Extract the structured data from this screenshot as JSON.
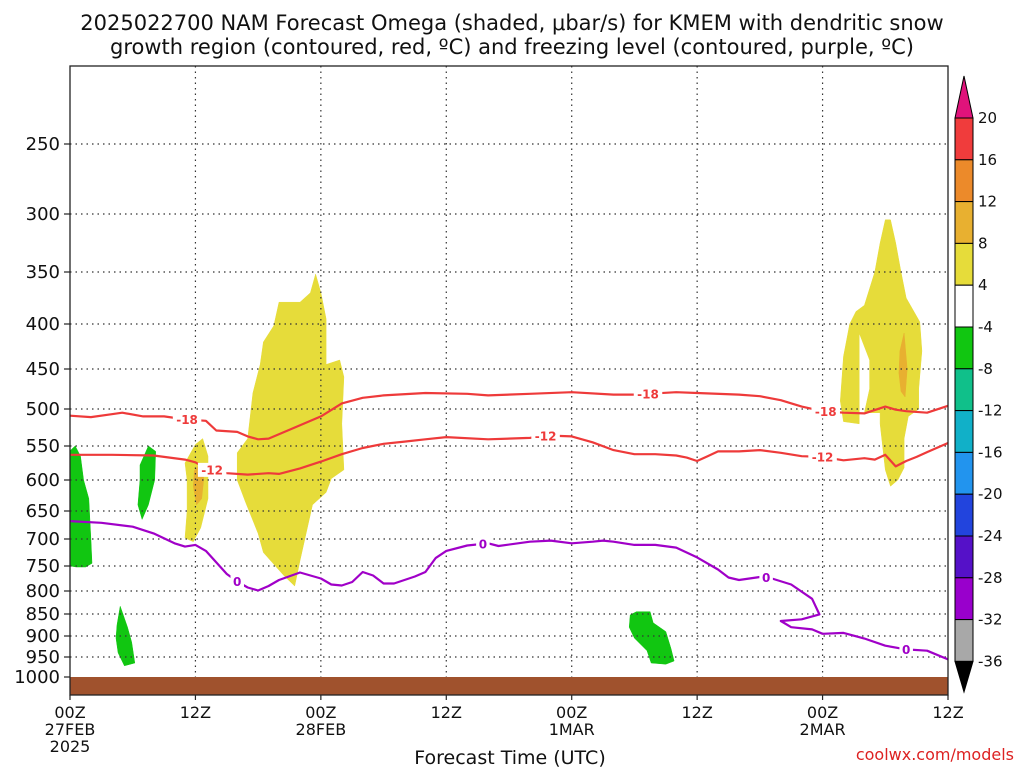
{
  "chart_data": {
    "type": "contour",
    "title_line1": "2025022700 NAM Forecast Omega (shaded, μbar/s) for KMEM with dendritic snow",
    "title_line2": "growth region (contoured, red, ºC) and freezing level (contoured, purple, ºC)",
    "xlabel": "Forecast Time (UTC)",
    "credit": "coolwx.com/models",
    "x_range_hours": [
      0,
      84
    ],
    "x_ticks": [
      {
        "hour": 0,
        "line1": "00Z",
        "line2": "27FEB",
        "line3": "2025"
      },
      {
        "hour": 12,
        "line1": "12Z",
        "line2": "",
        "line3": ""
      },
      {
        "hour": 24,
        "line1": "00Z",
        "line2": "28FEB",
        "line3": ""
      },
      {
        "hour": 36,
        "line1": "12Z",
        "line2": "",
        "line3": ""
      },
      {
        "hour": 48,
        "line1": "00Z",
        "line2": "1MAR",
        "line3": ""
      },
      {
        "hour": 60,
        "line1": "12Z",
        "line2": "",
        "line3": ""
      },
      {
        "hour": 72,
        "line1": "00Z",
        "line2": "2MAR",
        "line3": ""
      },
      {
        "hour": 84,
        "line1": "12Z",
        "line2": "",
        "line3": ""
      }
    ],
    "y_ticks": [
      250,
      300,
      350,
      400,
      450,
      500,
      550,
      600,
      650,
      700,
      750,
      800,
      850,
      900,
      950,
      1000
    ],
    "colorbar": {
      "labels": [
        "20",
        "16",
        "12",
        "8",
        "4",
        "-4",
        "-8",
        "-12",
        "-16",
        "-20",
        "-24",
        "-28",
        "-32",
        "-36"
      ],
      "colors": [
        "#e0137b",
        "#f03c3c",
        "#ec8a2a",
        "#e8b030",
        "#e6dc3a",
        "#ffffff",
        "#11c611",
        "#10c08a",
        "#11b0c8",
        "#2294ee",
        "#2244dd",
        "#5511c8",
        "#9900cc",
        "#a8a8a8",
        "#000000"
      ]
    },
    "contours": [
      {
        "label": "-18",
        "color": "#ee3a3a",
        "label_hours": [
          11.2,
          55.3,
          72.3
        ],
        "points": [
          [
            0,
            509
          ],
          [
            2,
            511
          ],
          [
            4,
            507
          ],
          [
            5,
            505
          ],
          [
            7,
            510
          ],
          [
            9,
            510
          ],
          [
            11,
            514
          ],
          [
            13,
            516
          ],
          [
            14,
            529
          ],
          [
            16,
            531
          ],
          [
            17,
            537
          ],
          [
            18,
            541
          ],
          [
            19,
            540
          ],
          [
            21,
            528
          ],
          [
            24,
            510
          ],
          [
            26,
            493
          ],
          [
            28,
            486
          ],
          [
            30,
            483
          ],
          [
            34,
            480
          ],
          [
            38,
            481
          ],
          [
            40,
            483
          ],
          [
            44,
            481
          ],
          [
            48,
            479
          ],
          [
            52,
            482
          ],
          [
            54,
            482
          ],
          [
            58,
            479
          ],
          [
            60,
            480
          ],
          [
            64,
            482
          ],
          [
            66,
            484
          ],
          [
            68,
            489
          ],
          [
            70,
            497
          ],
          [
            72,
            503
          ],
          [
            74,
            505
          ],
          [
            76,
            506
          ],
          [
            78,
            497
          ],
          [
            79,
            501
          ],
          [
            80,
            503
          ],
          [
            82,
            505
          ],
          [
            84,
            496
          ]
        ]
      },
      {
        "label": "-12",
        "color": "#ee3a3a",
        "label_hours": [
          13.6,
          45.5,
          72.0
        ],
        "points": [
          [
            0,
            563
          ],
          [
            4,
            563
          ],
          [
            8,
            564
          ],
          [
            11,
            570
          ],
          [
            12,
            574
          ],
          [
            13,
            583
          ],
          [
            15,
            590
          ],
          [
            17,
            592
          ],
          [
            19,
            590
          ],
          [
            20,
            591
          ],
          [
            22,
            583
          ],
          [
            24,
            573
          ],
          [
            26,
            562
          ],
          [
            28,
            553
          ],
          [
            30,
            547
          ],
          [
            32,
            544
          ],
          [
            34,
            541
          ],
          [
            36,
            538
          ],
          [
            40,
            541
          ],
          [
            44,
            539
          ],
          [
            46,
            536
          ],
          [
            48,
            537
          ],
          [
            50,
            545
          ],
          [
            52,
            556
          ],
          [
            54,
            562
          ],
          [
            56,
            562
          ],
          [
            58,
            564
          ],
          [
            59,
            567
          ],
          [
            60,
            572
          ],
          [
            61,
            565
          ],
          [
            62,
            558
          ],
          [
            64,
            558
          ],
          [
            66,
            556
          ],
          [
            68,
            560
          ],
          [
            70,
            565
          ],
          [
            72,
            566
          ],
          [
            74,
            571
          ],
          [
            76,
            568
          ],
          [
            77,
            570
          ],
          [
            78,
            563
          ],
          [
            79,
            580
          ],
          [
            80,
            572
          ],
          [
            81,
            566
          ],
          [
            82,
            559
          ],
          [
            84,
            546
          ]
        ]
      },
      {
        "label": "0",
        "color": "#a000c8",
        "label_hours": [
          16.0,
          39.5,
          66.6,
          80.0
        ],
        "points": [
          [
            0,
            668
          ],
          [
            3,
            671
          ],
          [
            6,
            678
          ],
          [
            8,
            690
          ],
          [
            10,
            708
          ],
          [
            11,
            714
          ],
          [
            12,
            711
          ],
          [
            13,
            722
          ],
          [
            15,
            766
          ],
          [
            16,
            781
          ],
          [
            17,
            793
          ],
          [
            18,
            799
          ],
          [
            19,
            790
          ],
          [
            20,
            778
          ],
          [
            22,
            763
          ],
          [
            24,
            775
          ],
          [
            25,
            787
          ],
          [
            26,
            789
          ],
          [
            27,
            782
          ],
          [
            28,
            762
          ],
          [
            29,
            769
          ],
          [
            30,
            785
          ],
          [
            31,
            785
          ],
          [
            33,
            771
          ],
          [
            34,
            762
          ],
          [
            35,
            735
          ],
          [
            36,
            722
          ],
          [
            38,
            712
          ],
          [
            40,
            708
          ],
          [
            41,
            713
          ],
          [
            44,
            705
          ],
          [
            46,
            703
          ],
          [
            48,
            708
          ],
          [
            50,
            705
          ],
          [
            51,
            703
          ],
          [
            52,
            705
          ],
          [
            54,
            711
          ],
          [
            56,
            711
          ],
          [
            58,
            716
          ],
          [
            60,
            734
          ],
          [
            62,
            757
          ],
          [
            63,
            773
          ],
          [
            64,
            778
          ],
          [
            66,
            772
          ],
          [
            67,
            774
          ],
          [
            69,
            787
          ],
          [
            71,
            817
          ],
          [
            71.7,
            851
          ],
          [
            70,
            862
          ],
          [
            68,
            866
          ],
          [
            69,
            880
          ],
          [
            71,
            885
          ],
          [
            72,
            895
          ],
          [
            74,
            893
          ],
          [
            76,
            906
          ],
          [
            78,
            923
          ],
          [
            80,
            932
          ],
          [
            82,
            935
          ],
          [
            84,
            956
          ]
        ]
      }
    ],
    "omega_regions": [
      {
        "color": "#11c611",
        "points": [
          [
            0,
            557
          ],
          [
            0.5,
            550
          ],
          [
            1.0,
            565
          ],
          [
            1.3,
            600
          ],
          [
            1.8,
            630
          ],
          [
            2.0,
            700
          ],
          [
            2.1,
            745
          ],
          [
            1.5,
            752
          ],
          [
            0.6,
            752
          ],
          [
            0,
            750
          ]
        ]
      },
      {
        "color": "#11c611",
        "points": [
          [
            6.7,
            578
          ],
          [
            7.5,
            550
          ],
          [
            8.2,
            558
          ],
          [
            8.1,
            600
          ],
          [
            7.5,
            640
          ],
          [
            6.9,
            665
          ],
          [
            6.5,
            640
          ],
          [
            6.7,
            600
          ]
        ]
      },
      {
        "color": "#11c611",
        "points": [
          [
            4.5,
            875
          ],
          [
            4.8,
            833
          ],
          [
            5.5,
            880
          ],
          [
            5.9,
            915
          ],
          [
            6.2,
            965
          ],
          [
            5.2,
            972
          ],
          [
            4.6,
            940
          ],
          [
            4.4,
            905
          ]
        ]
      },
      {
        "color": "#11c611",
        "points": [
          [
            53.6,
            852
          ],
          [
            54.2,
            845
          ],
          [
            55.5,
            845
          ],
          [
            55.8,
            870
          ],
          [
            57.0,
            890
          ],
          [
            57.5,
            930
          ],
          [
            57.8,
            960
          ],
          [
            57,
            968
          ],
          [
            55.6,
            965
          ],
          [
            55.2,
            935
          ],
          [
            54,
            905
          ],
          [
            53.5,
            880
          ]
        ]
      },
      {
        "color": "#e6dc3a",
        "points": [
          [
            11.0,
            575
          ],
          [
            12.0,
            548
          ],
          [
            12.7,
            540
          ],
          [
            13.2,
            565
          ],
          [
            13.2,
            630
          ],
          [
            12.5,
            680
          ],
          [
            11.8,
            705
          ],
          [
            11.0,
            698
          ],
          [
            11.2,
            650
          ],
          [
            11.2,
            600
          ]
        ]
      },
      {
        "color": "#e6dc3a",
        "points": [
          [
            18.5,
            420
          ],
          [
            19.5,
            402
          ],
          [
            20,
            379
          ],
          [
            22,
            379
          ],
          [
            23,
            370
          ],
          [
            23.5,
            352
          ],
          [
            24.0,
            370
          ],
          [
            24.5,
            395
          ],
          [
            24.5,
            445
          ],
          [
            25.8,
            440
          ],
          [
            26.2,
            460
          ],
          [
            26.0,
            520
          ],
          [
            26.2,
            585
          ],
          [
            25.0,
            598
          ],
          [
            24.5,
            620
          ],
          [
            23.2,
            640
          ],
          [
            22.0,
            740
          ],
          [
            21.5,
            790
          ],
          [
            20.5,
            770
          ],
          [
            18.5,
            725
          ],
          [
            18.0,
            690
          ],
          [
            16.8,
            636
          ],
          [
            16.0,
            600
          ],
          [
            16.0,
            560
          ],
          [
            17.0,
            540
          ],
          [
            17.5,
            480
          ],
          [
            18.2,
            445
          ]
        ]
      },
      {
        "color": "#e6dc3a",
        "points": [
          [
            74.0,
            436
          ],
          [
            74.6,
            400
          ],
          [
            75.2,
            388
          ],
          [
            76.0,
            382
          ],
          [
            77.0,
            350
          ],
          [
            77.5,
            325
          ],
          [
            78.0,
            305
          ],
          [
            78.5,
            305
          ],
          [
            79.0,
            325
          ],
          [
            79.5,
            350
          ],
          [
            80.0,
            375
          ],
          [
            81.3,
            398
          ],
          [
            81.5,
            430
          ],
          [
            81.2,
            475
          ],
          [
            81.2,
            500
          ],
          [
            80.2,
            510
          ],
          [
            79.8,
            540
          ],
          [
            79.8,
            582
          ],
          [
            79.2,
            600
          ],
          [
            78.5,
            610
          ],
          [
            78.0,
            585
          ],
          [
            77.5,
            520
          ],
          [
            77.5,
            505
          ],
          [
            76.0,
            505
          ],
          [
            76.5,
            475
          ],
          [
            76.5,
            440
          ],
          [
            75.5,
            410
          ],
          [
            75.5,
            520
          ],
          [
            74.0,
            517
          ],
          [
            73.7,
            490
          ]
        ]
      },
      {
        "color": "#e8b030",
        "points": [
          [
            11.9,
            586
          ],
          [
            12.5,
            575
          ],
          [
            12.8,
            598
          ],
          [
            12.6,
            630
          ],
          [
            12.1,
            640
          ],
          [
            11.8,
            610
          ]
        ]
      },
      {
        "color": "#e8b030",
        "points": [
          [
            79.4,
            430
          ],
          [
            79.8,
            410
          ],
          [
            80.1,
            450
          ],
          [
            79.9,
            485
          ],
          [
            79.5,
            478
          ],
          [
            79.3,
            455
          ]
        ]
      }
    ]
  }
}
